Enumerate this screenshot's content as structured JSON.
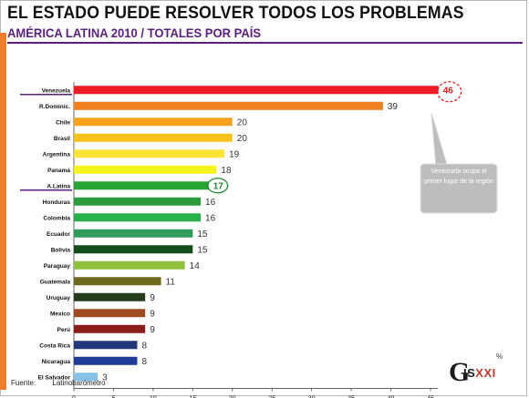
{
  "title": "EL ESTADO PUEDE RESOLVER TODOS LOS PROBLEMAS",
  "subtitle": "AMÉRICA LATINA 2010 / TOTALES POR PAÍS",
  "source": {
    "label": "Fuente:",
    "name": "Latinobarómetro"
  },
  "logo": {
    "letter": "G",
    "text": "IS",
    "roman": "XXI",
    "percent": "%"
  },
  "callout": {
    "text": "Venezuela ocupa el primer lugar de la región"
  },
  "colors": {
    "accent": "#ee7e2e",
    "subtitle": "#5a1e7d",
    "highlight_marker": "#5a1e7d",
    "callout_bg": "#bdbdbd",
    "circle_red": "#e02020",
    "circle_green": "#1f8a2f"
  },
  "chart_data": {
    "type": "bar",
    "orientation": "horizontal",
    "categories": [
      "Venezuela",
      "R.Dominic.",
      "Chile",
      "Brasil",
      "Argentina",
      "Panamá",
      "A.Latina",
      "Honduras",
      "Colombia",
      "Ecuador",
      "Bolivia",
      "Paraguay",
      "Guatemala",
      "Uruguay",
      "Mexico",
      "Perú",
      "Costa Rica",
      "Nicaragua",
      "El Salvador"
    ],
    "values": [
      46,
      39,
      20,
      20,
      19,
      18,
      17,
      16,
      16,
      15,
      15,
      14,
      11,
      9,
      9,
      9,
      8,
      8,
      3
    ],
    "bar_colors": [
      "#ee1c25",
      "#f07f1d",
      "#f7a21b",
      "#f6c21a",
      "#fbe437",
      "#f6f21c",
      "#27a534",
      "#2d9b3e",
      "#28b04a",
      "#2e9b5d",
      "#144d1b",
      "#8fc13c",
      "#6e6a1f",
      "#253c1c",
      "#a04a1f",
      "#8b1c1c",
      "#23387a",
      "#1e3c97",
      "#86c1e6"
    ],
    "value_labels": [
      "46",
      "39",
      "20",
      "20",
      "19",
      "18",
      "17",
      "16",
      "16",
      "15",
      "15",
      "14",
      "11",
      "9",
      "9",
      "9",
      "8",
      "8",
      "3"
    ],
    "highlighted_categories": [
      "Venezuela",
      "A.Latina"
    ],
    "xlim": [
      0,
      45
    ],
    "xticks": [
      0,
      5,
      10,
      15,
      20,
      25,
      30,
      35,
      40,
      45
    ],
    "grid": false,
    "xlabel": "",
    "ylabel": ""
  }
}
